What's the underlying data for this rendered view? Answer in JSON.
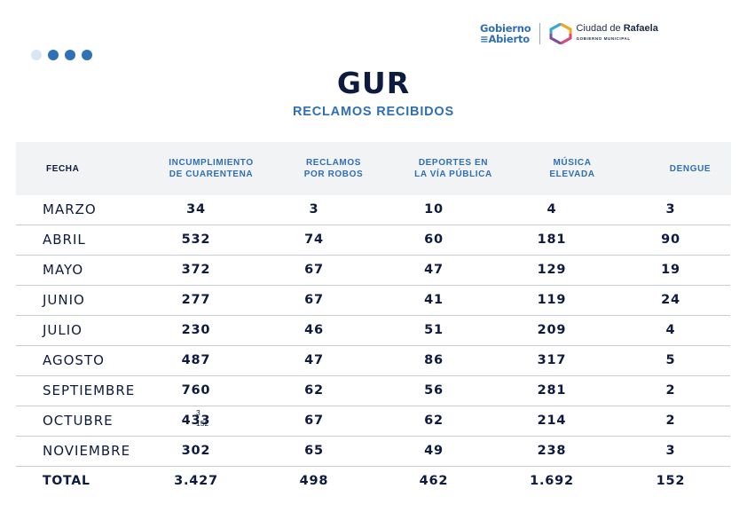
{
  "branding": {
    "gobierno_line1": "Gobierno",
    "gobierno_line2": "Abierto",
    "ciudad_prefix": "Ciudad de ",
    "ciudad_name": "Rafaela",
    "ciudad_sub": "GOBIERNO MUNICIPAL",
    "colors": {
      "accent": "#2f6fb3",
      "navy": "#0d1b3e",
      "header_bg": "#f2f3f5"
    }
  },
  "title": "GUR",
  "subtitle": "RECLAMOS RECIBIDOS",
  "table": {
    "headers": {
      "fecha": "FECHA",
      "cuarentena_1": "INCUMPLIMIENTO",
      "cuarentena_2": "DE CUARENTENA",
      "robos_1": "RECLAMOS",
      "robos_2": "POR ROBOS",
      "deportes_1": "DEPORTES EN",
      "deportes_2": "LA VÍA PÚBLICA",
      "musica_1": "MÚSICA",
      "musica_2": "ELEVADA",
      "dengue": "DENGUE"
    },
    "rows": [
      {
        "mes": "MARZO",
        "cuarentena": "34",
        "robos": "3",
        "deportes": "10",
        "musica": "4",
        "dengue": "3"
      },
      {
        "mes": "ABRIL",
        "cuarentena": "532",
        "robos": "74",
        "deportes": "60",
        "musica": "181",
        "dengue": "90"
      },
      {
        "mes": "MAYO",
        "cuarentena": "372",
        "robos": "67",
        "deportes": "47",
        "musica": "129",
        "dengue": "19"
      },
      {
        "mes": "JUNIO",
        "cuarentena": "277",
        "robos": "67",
        "deportes": "41",
        "musica": "119",
        "dengue": "24"
      },
      {
        "mes": "JULIO",
        "cuarentena": "230",
        "robos": "46",
        "deportes": "51",
        "musica": "209",
        "dengue": "4"
      },
      {
        "mes": "AGOSTO",
        "cuarentena": "487",
        "robos": "47",
        "deportes": "86",
        "musica": "317",
        "dengue": "5"
      },
      {
        "mes": "SEPTIEMBRE",
        "cuarentena": "760",
        "robos": "62",
        "deportes": "56",
        "musica": "281",
        "dengue": "2"
      },
      {
        "mes": "OCTUBRE",
        "cuarentena": "433",
        "robos": "67",
        "deportes": "62",
        "musica": "214",
        "dengue": "2"
      },
      {
        "mes": "NOVIEMBRE",
        "cuarentena": "302",
        "robos": "65",
        "deportes": "49",
        "musica": "238",
        "dengue": "3"
      }
    ],
    "total": {
      "mes": "TOTAL",
      "cuarentena": "3.427",
      "robos": "498",
      "deportes": "462",
      "musica": "1.692",
      "dengue": "152"
    },
    "annotation": {
      "top": "3",
      "bottom": "152"
    }
  }
}
